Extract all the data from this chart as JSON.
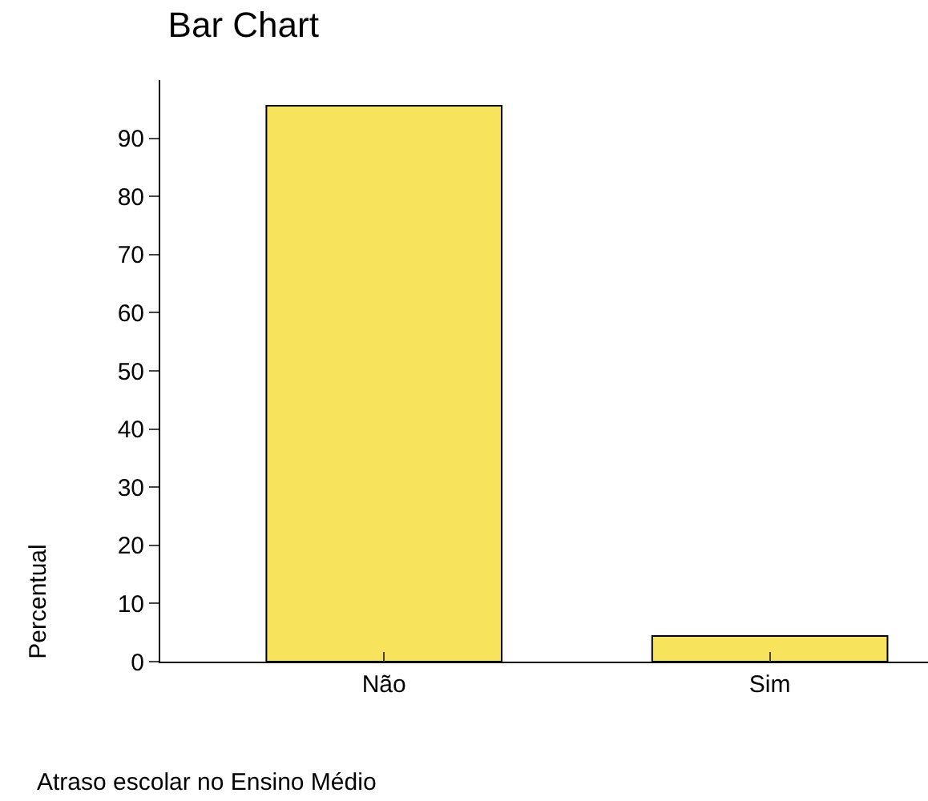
{
  "chart_data": {
    "type": "bar",
    "title": "Bar Chart",
    "xlabel": "Atraso escolar no Ensino Médio",
    "ylabel": "Percentual",
    "categories": [
      "Não",
      "Sim"
    ],
    "values": [
      95.6,
      4.4
    ],
    "color": "#f7e35c",
    "ylim": [
      0,
      100
    ],
    "yticks": [
      0,
      10,
      20,
      30,
      40,
      50,
      60,
      70,
      80,
      90
    ],
    "grid": false
  }
}
